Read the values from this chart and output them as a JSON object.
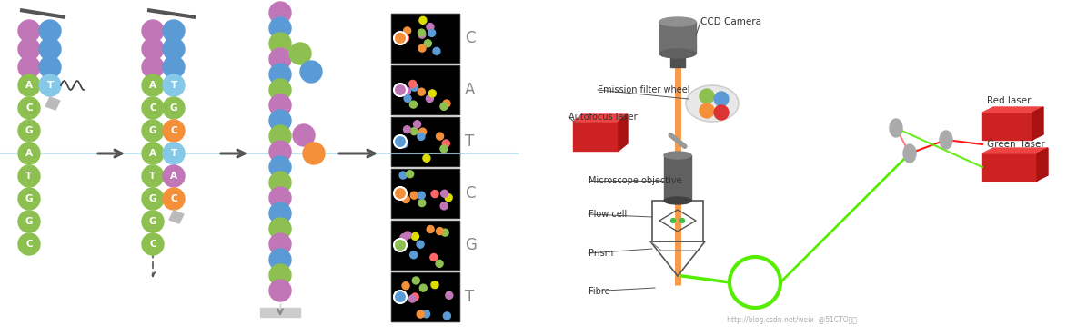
{
  "bg_color": "#ffffff",
  "purple": "#C176B8",
  "blue": "#5B9BD5",
  "green": "#8DC050",
  "orange": "#F4903A",
  "light_blue": "#85C8E8",
  "gray": "#888888",
  "dark_gray": "#555555",
  "labels_tgctac": [
    "T",
    "G",
    "C",
    "T",
    "A",
    "C"
  ],
  "microscope_labels": [
    "CCD Camera",
    "Emission filter wheel",
    "Autofocus laser",
    "Microscope objective",
    "Flow cell",
    "Prism",
    "Fibre"
  ],
  "laser_labels": [
    "Red laser",
    "Green  laser"
  ],
  "watermark": "http://blog.csdn.net/weix  @51CTO博客",
  "arrow_color": "#555555",
  "light_blue_line": "#A8DCEC"
}
